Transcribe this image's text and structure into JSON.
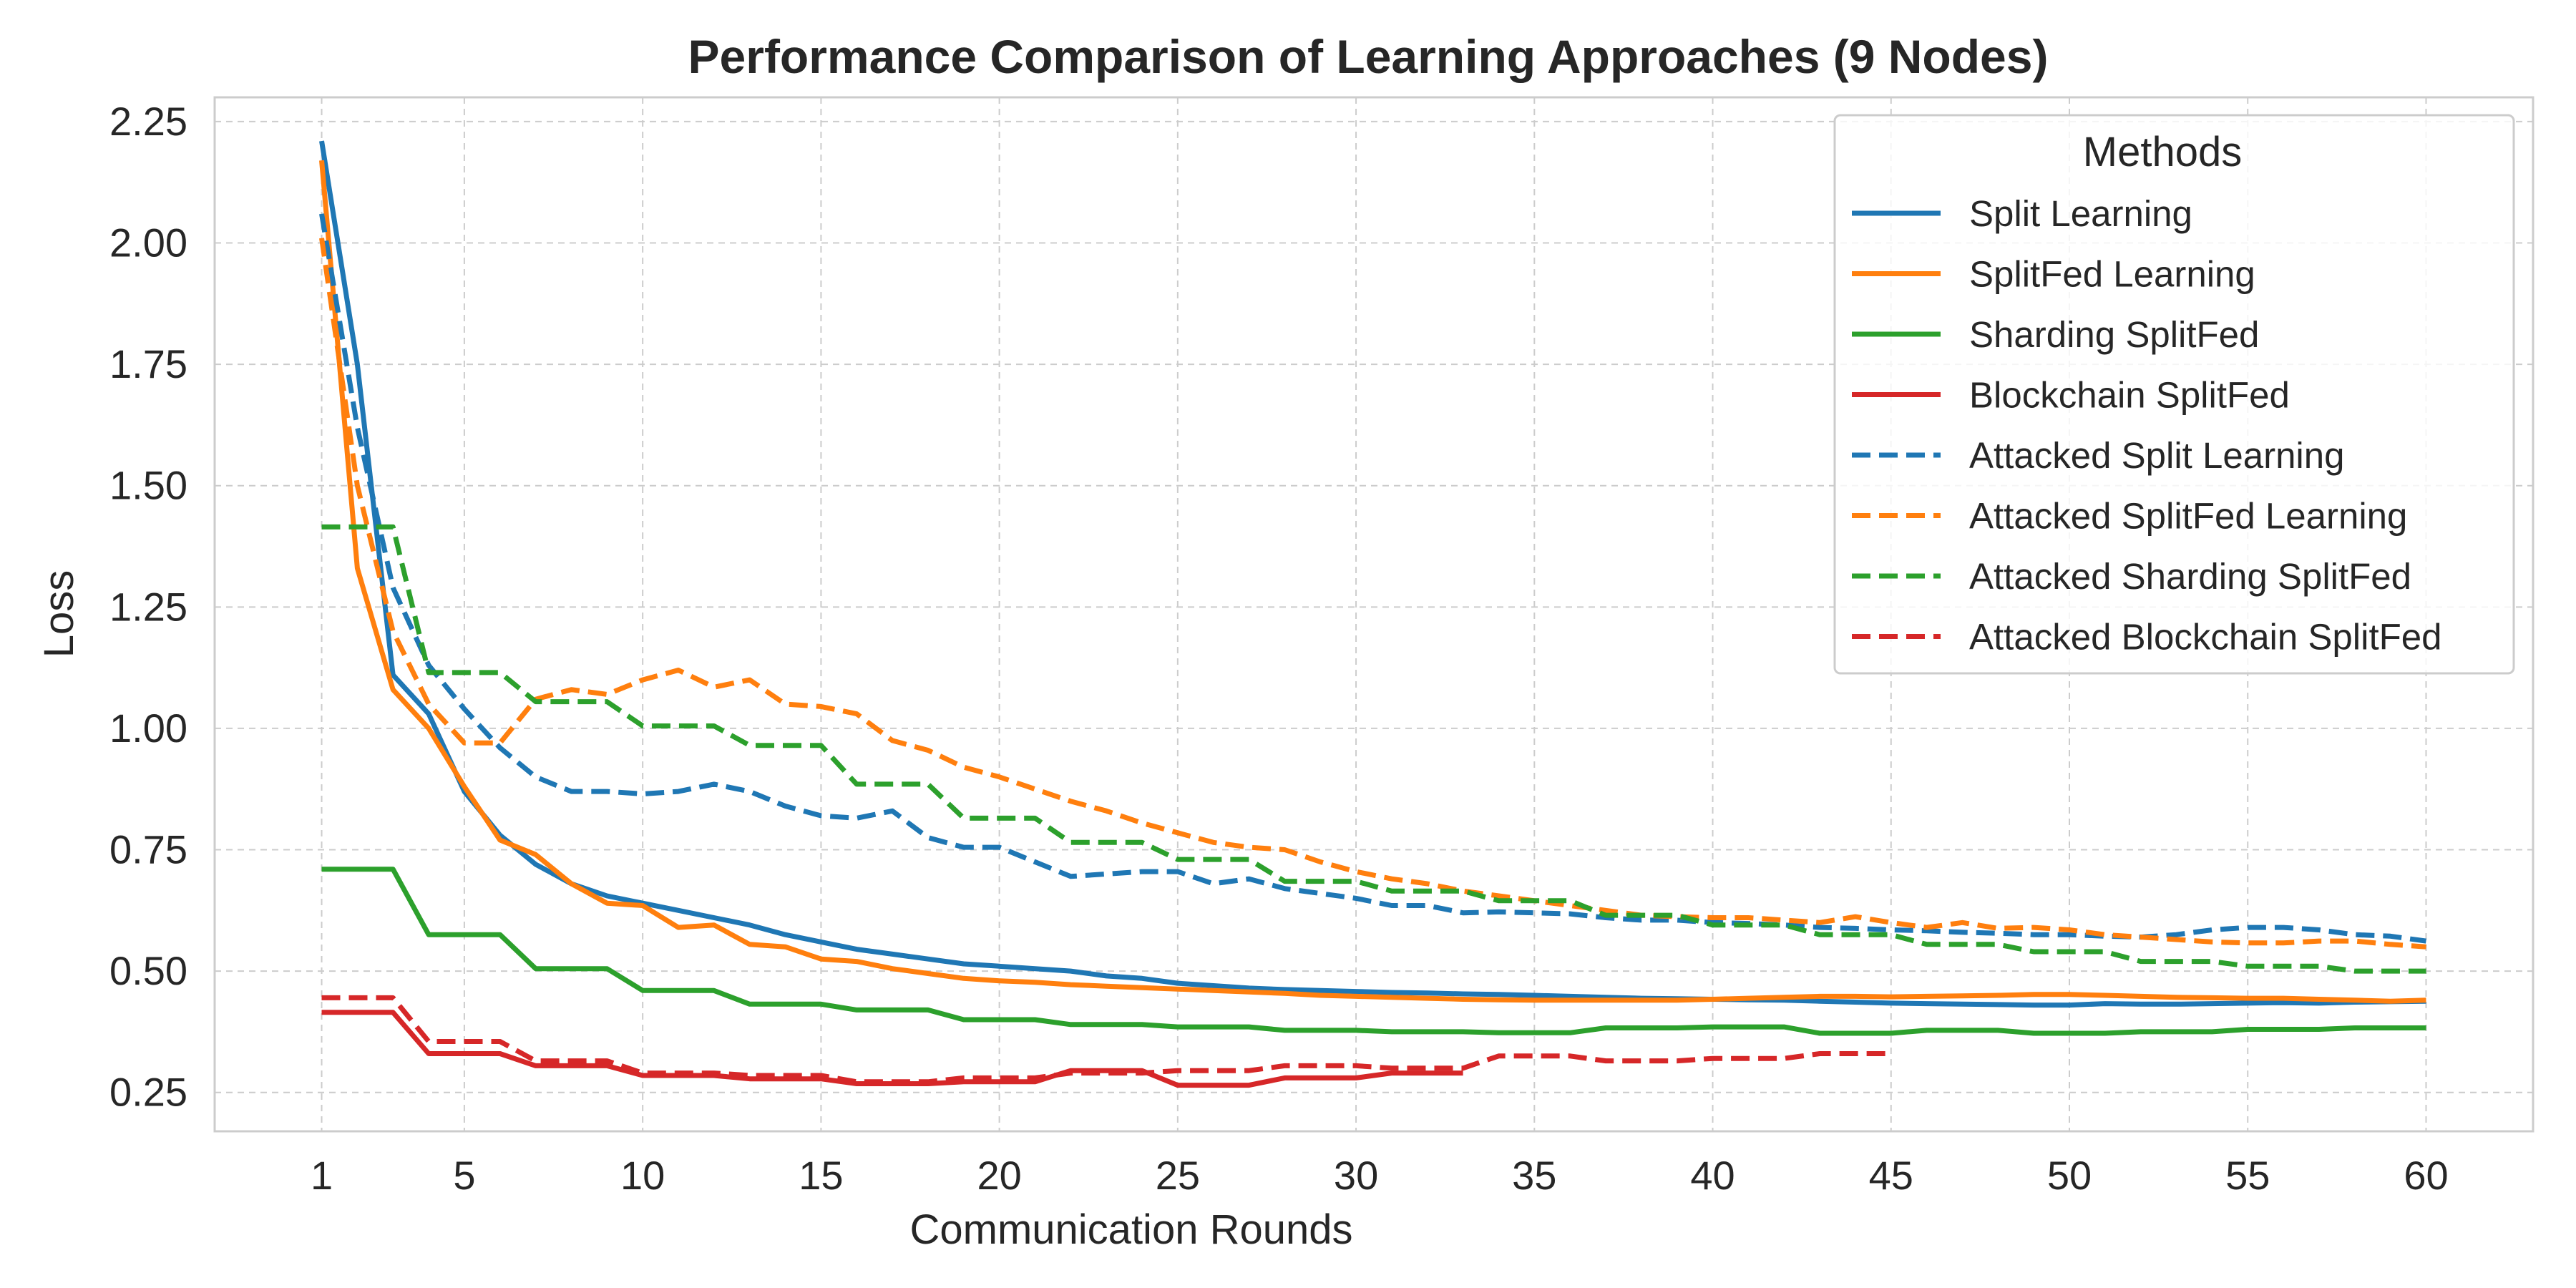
{
  "chart_data": {
    "type": "line",
    "title": "Performance Comparison of Learning Approaches (9 Nodes)",
    "xlabel": "Communication Rounds",
    "ylabel": "Loss",
    "xlim": [
      -2,
      63
    ],
    "ylim": [
      0.17,
      2.3
    ],
    "xticks": [
      1,
      5,
      10,
      15,
      20,
      25,
      30,
      35,
      40,
      45,
      50,
      55,
      60
    ],
    "yticks": [
      0.25,
      0.5,
      0.75,
      1.0,
      1.25,
      1.5,
      1.75,
      2.0,
      2.25
    ],
    "ytick_labels": [
      "0.25",
      "0.50",
      "0.75",
      "1.00",
      "1.25",
      "1.50",
      "1.75",
      "2.00",
      "2.25"
    ],
    "grid": true,
    "legend": {
      "title": "Methods",
      "position": "top-right"
    },
    "series": [
      {
        "name": "Split Learning",
        "color": "#1f77b4",
        "style": "solid",
        "x_start": 1,
        "values": [
          2.21,
          1.75,
          1.11,
          1.03,
          0.87,
          0.78,
          0.72,
          0.68,
          0.655,
          0.64,
          0.625,
          0.61,
          0.595,
          0.575,
          0.56,
          0.545,
          0.535,
          0.525,
          0.515,
          0.51,
          0.505,
          0.5,
          0.49,
          0.485,
          0.475,
          0.47,
          0.465,
          0.462,
          0.46,
          0.458,
          0.456,
          0.455,
          0.453,
          0.452,
          0.45,
          0.448,
          0.446,
          0.444,
          0.443,
          0.442,
          0.441,
          0.44,
          0.438,
          0.436,
          0.434,
          0.433,
          0.432,
          0.431,
          0.43,
          0.43,
          0.433,
          0.432,
          0.432,
          0.433,
          0.434,
          0.435,
          0.434,
          0.436,
          0.437,
          0.438
        ]
      },
      {
        "name": "SplitFed Learning",
        "color": "#ff7f0e",
        "style": "solid",
        "x_start": 1,
        "values": [
          2.17,
          1.33,
          1.08,
          1.0,
          0.88,
          0.77,
          0.74,
          0.68,
          0.64,
          0.635,
          0.59,
          0.595,
          0.555,
          0.55,
          0.525,
          0.52,
          0.505,
          0.495,
          0.485,
          0.48,
          0.477,
          0.472,
          0.469,
          0.466,
          0.463,
          0.46,
          0.457,
          0.454,
          0.45,
          0.448,
          0.446,
          0.444,
          0.442,
          0.441,
          0.44,
          0.44,
          0.44,
          0.44,
          0.44,
          0.442,
          0.444,
          0.446,
          0.448,
          0.448,
          0.447,
          0.448,
          0.449,
          0.45,
          0.452,
          0.452,
          0.45,
          0.448,
          0.446,
          0.445,
          0.444,
          0.444,
          0.442,
          0.44,
          0.438,
          0.44
        ]
      },
      {
        "name": "Sharding SplitFed",
        "color": "#2ca02c",
        "style": "solid",
        "x_start": 1,
        "values": [
          0.71,
          0.71,
          0.71,
          0.575,
          0.575,
          0.575,
          0.505,
          0.505,
          0.505,
          0.46,
          0.46,
          0.46,
          0.432,
          0.432,
          0.432,
          0.42,
          0.42,
          0.42,
          0.4,
          0.4,
          0.4,
          0.39,
          0.39,
          0.39,
          0.385,
          0.385,
          0.385,
          0.378,
          0.378,
          0.378,
          0.375,
          0.375,
          0.375,
          0.373,
          0.373,
          0.373,
          0.383,
          0.383,
          0.383,
          0.385,
          0.385,
          0.385,
          0.372,
          0.372,
          0.372,
          0.378,
          0.378,
          0.378,
          0.372,
          0.372,
          0.372,
          0.375,
          0.375,
          0.375,
          0.38,
          0.38,
          0.38,
          0.383,
          0.383,
          0.383
        ]
      },
      {
        "name": "Blockchain SplitFed",
        "color": "#d62728",
        "style": "solid",
        "x_start": 1,
        "values": [
          0.415,
          0.415,
          0.415,
          0.33,
          0.33,
          0.33,
          0.305,
          0.305,
          0.305,
          0.285,
          0.285,
          0.285,
          0.278,
          0.278,
          0.278,
          0.268,
          0.268,
          0.268,
          0.272,
          0.272,
          0.272,
          0.295,
          0.295,
          0.295,
          0.265,
          0.265,
          0.265,
          0.28,
          0.28,
          0.28,
          0.29,
          0.29,
          0.29
        ]
      },
      {
        "name": "Attacked Split Learning",
        "color": "#1f77b4",
        "style": "dashed",
        "x_start": 1,
        "values": [
          2.06,
          1.62,
          1.29,
          1.13,
          1.04,
          0.96,
          0.9,
          0.87,
          0.87,
          0.865,
          0.87,
          0.885,
          0.87,
          0.84,
          0.82,
          0.815,
          0.83,
          0.775,
          0.755,
          0.755,
          0.725,
          0.695,
          0.7,
          0.705,
          0.705,
          0.68,
          0.69,
          0.67,
          0.66,
          0.65,
          0.635,
          0.635,
          0.62,
          0.622,
          0.62,
          0.618,
          0.61,
          0.605,
          0.605,
          0.6,
          0.598,
          0.595,
          0.59,
          0.588,
          0.585,
          0.583,
          0.58,
          0.578,
          0.575,
          0.575,
          0.572,
          0.57,
          0.575,
          0.585,
          0.59,
          0.59,
          0.585,
          0.575,
          0.572,
          0.562
        ]
      },
      {
        "name": "Attacked SplitFed Learning",
        "color": "#ff7f0e",
        "style": "dashed",
        "x_start": 1,
        "values": [
          2.01,
          1.5,
          1.2,
          1.05,
          0.97,
          0.97,
          1.06,
          1.08,
          1.07,
          1.1,
          1.12,
          1.085,
          1.1,
          1.05,
          1.045,
          1.03,
          0.975,
          0.955,
          0.92,
          0.9,
          0.875,
          0.85,
          0.83,
          0.805,
          0.785,
          0.765,
          0.755,
          0.75,
          0.725,
          0.705,
          0.69,
          0.68,
          0.665,
          0.655,
          0.645,
          0.635,
          0.625,
          0.615,
          0.612,
          0.61,
          0.61,
          0.605,
          0.6,
          0.612,
          0.6,
          0.59,
          0.6,
          0.588,
          0.59,
          0.585,
          0.575,
          0.57,
          0.565,
          0.56,
          0.558,
          0.558,
          0.562,
          0.562,
          0.555,
          0.55
        ]
      },
      {
        "name": "Attacked Sharding SplitFed",
        "color": "#2ca02c",
        "style": "dashed",
        "x_start": 1,
        "values": [
          1.415,
          1.415,
          1.415,
          1.115,
          1.115,
          1.115,
          1.055,
          1.055,
          1.055,
          1.005,
          1.005,
          1.005,
          0.965,
          0.965,
          0.965,
          0.885,
          0.885,
          0.885,
          0.815,
          0.815,
          0.815,
          0.765,
          0.765,
          0.765,
          0.73,
          0.73,
          0.73,
          0.685,
          0.685,
          0.685,
          0.665,
          0.665,
          0.665,
          0.645,
          0.645,
          0.645,
          0.615,
          0.615,
          0.615,
          0.595,
          0.595,
          0.595,
          0.575,
          0.575,
          0.575,
          0.555,
          0.555,
          0.555,
          0.54,
          0.54,
          0.54,
          0.52,
          0.52,
          0.52,
          0.51,
          0.51,
          0.51,
          0.5,
          0.5,
          0.5
        ]
      },
      {
        "name": "Attacked Blockchain SplitFed",
        "color": "#d62728",
        "style": "dashed",
        "x_start": 1,
        "values": [
          0.445,
          0.445,
          0.445,
          0.355,
          0.355,
          0.355,
          0.315,
          0.315,
          0.315,
          0.29,
          0.29,
          0.29,
          0.285,
          0.285,
          0.285,
          0.272,
          0.272,
          0.272,
          0.28,
          0.28,
          0.28,
          0.29,
          0.29,
          0.29,
          0.295,
          0.295,
          0.295,
          0.305,
          0.305,
          0.305,
          0.3,
          0.3,
          0.3,
          0.325,
          0.325,
          0.325,
          0.315,
          0.315,
          0.315,
          0.32,
          0.32,
          0.32,
          0.33,
          0.33,
          0.33
        ]
      }
    ]
  }
}
